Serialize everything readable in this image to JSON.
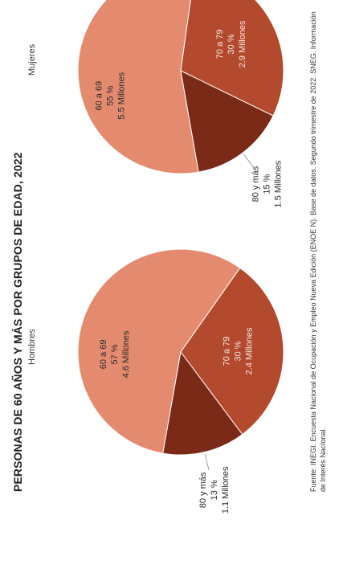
{
  "title": "PERSONAS DE 60 AÑOS Y MÁS POR GRUPOS DE EDAD, 2022",
  "source": "Fuente: INEGI. Encuesta Nacional de Ocupación y Empleo Nueva Edición (ENOE N). Base de datos. Segundo trimestre de 2022. SNEG. Información de Interés Nacional.",
  "colors": {
    "group_60_69": "#e48b6f",
    "group_70_79": "#b3492d",
    "group_80_mas": "#7a2a17"
  },
  "chart_data": [
    {
      "type": "pie",
      "subtitle": "Hombres",
      "slices": [
        {
          "label": "60 a 69",
          "percent": 57,
          "percent_text": "57 %",
          "amount_text": "4.6 Millones"
        },
        {
          "label": "70 a 79",
          "percent": 30,
          "percent_text": "30 %",
          "amount_text": "2.4 Millones"
        },
        {
          "label": "80 y más",
          "percent": 13,
          "percent_text": "13 %",
          "amount_text": "1.1 Millones"
        }
      ]
    },
    {
      "type": "pie",
      "subtitle": "Mujeres",
      "slices": [
        {
          "label": "60 a 69",
          "percent": 55,
          "percent_text": "55 %",
          "amount_text": "5.5 Millones"
        },
        {
          "label": "70 a 79",
          "percent": 30,
          "percent_text": "30 %",
          "amount_text": "2.9 Millones"
        },
        {
          "label": "80 y más",
          "percent": 15,
          "percent_text": "15 %",
          "amount_text": "1.5 Millones"
        }
      ]
    }
  ]
}
